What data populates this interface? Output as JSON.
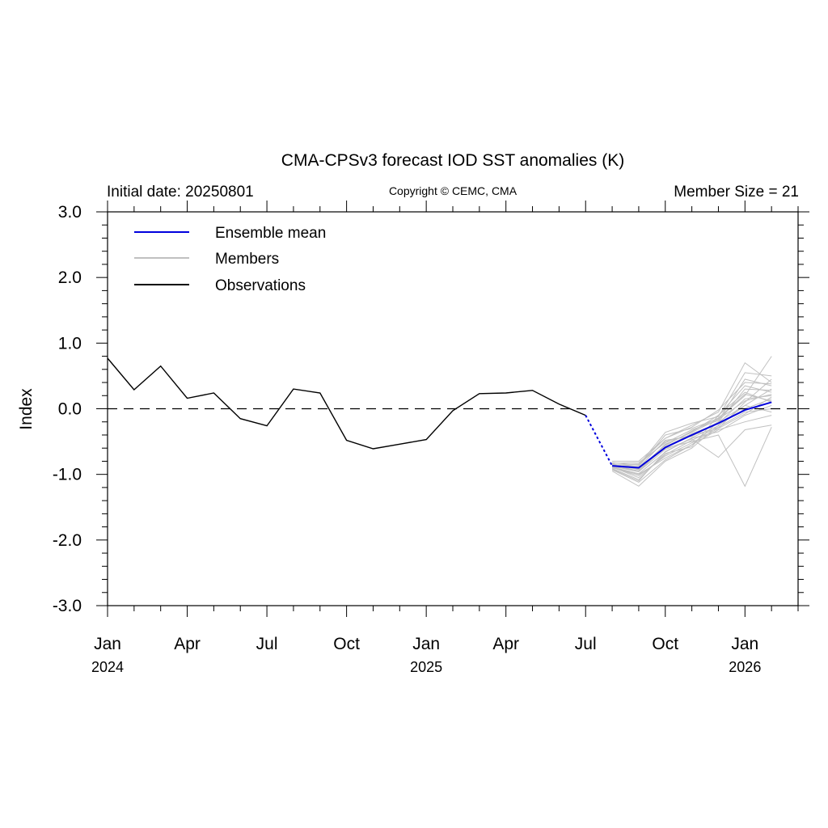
{
  "chart_data": {
    "type": "line",
    "title": "CMA-CPSv3 forecast IOD SST anomalies (K)",
    "initial_date_label": "Initial date: 20250801",
    "copyright_label": "Copyright © CEMC, CMA",
    "member_size_label": "Member Size = 21",
    "ylabel": "Index",
    "ylim": [
      -3.0,
      3.0
    ],
    "yticks": [
      3.0,
      2.0,
      1.0,
      0.0,
      -1.0,
      -2.0,
      -3.0
    ],
    "ytick_labels": [
      "3.0",
      "2.0",
      "1.0",
      "0.0",
      "-1.0",
      "-2.0",
      "-3.0"
    ],
    "xlim": [
      "2024-01",
      "2026-03"
    ],
    "xticks": [
      {
        "date": "2024-01",
        "label": "Jan",
        "year": "2024"
      },
      {
        "date": "2024-04",
        "label": "Apr",
        "year": ""
      },
      {
        "date": "2024-07",
        "label": "Jul",
        "year": ""
      },
      {
        "date": "2024-10",
        "label": "Oct",
        "year": ""
      },
      {
        "date": "2025-01",
        "label": "Jan",
        "year": "2025"
      },
      {
        "date": "2025-04",
        "label": "Apr",
        "year": ""
      },
      {
        "date": "2025-07",
        "label": "Jul",
        "year": ""
      },
      {
        "date": "2025-10",
        "label": "Oct",
        "year": ""
      },
      {
        "date": "2026-01",
        "label": "Jan",
        "year": "2026"
      }
    ],
    "zero_line": {
      "y": 0.0,
      "style": "dashed"
    },
    "legend": {
      "placement": "top-left",
      "entries": [
        {
          "label": "Ensemble mean",
          "color": "#0000dd"
        },
        {
          "label": "Members",
          "color": "#c0c0c0"
        },
        {
          "label": "Observations",
          "color": "#000000"
        }
      ]
    },
    "observations": {
      "color": "#000000",
      "points": [
        {
          "x": "2024-01",
          "y": 0.77
        },
        {
          "x": "2024-02",
          "y": 0.29
        },
        {
          "x": "2024-03",
          "y": 0.65
        },
        {
          "x": "2024-04",
          "y": 0.16
        },
        {
          "x": "2024-05",
          "y": 0.24
        },
        {
          "x": "2024-06",
          "y": -0.15
        },
        {
          "x": "2024-07",
          "y": -0.26
        },
        {
          "x": "2024-08",
          "y": 0.3
        },
        {
          "x": "2024-09",
          "y": 0.24
        },
        {
          "x": "2024-10",
          "y": -0.48
        },
        {
          "x": "2024-11",
          "y": -0.61
        },
        {
          "x": "2024-12",
          "y": -0.54
        },
        {
          "x": "2025-01",
          "y": -0.47
        },
        {
          "x": "2025-02",
          "y": -0.03
        },
        {
          "x": "2025-03",
          "y": 0.23
        },
        {
          "x": "2025-04",
          "y": 0.24
        },
        {
          "x": "2025-05",
          "y": 0.28
        },
        {
          "x": "2025-06",
          "y": 0.07
        },
        {
          "x": "2025-07",
          "y": -0.1
        }
      ]
    },
    "ensemble_mean": {
      "color": "#0000dd",
      "connector": [
        {
          "x": "2025-07",
          "y": -0.1
        },
        {
          "x": "2025-08",
          "y": -0.87
        }
      ],
      "points": [
        {
          "x": "2025-08",
          "y": -0.87
        },
        {
          "x": "2025-09",
          "y": -0.9
        },
        {
          "x": "2025-10",
          "y": -0.59
        },
        {
          "x": "2025-11",
          "y": -0.4
        },
        {
          "x": "2025-12",
          "y": -0.22
        },
        {
          "x": "2026-01",
          "y": -0.02
        },
        {
          "x": "2026-02",
          "y": 0.1
        }
      ]
    },
    "members": {
      "color": "#c0c0c0",
      "x": [
        "2025-08",
        "2025-09",
        "2025-10",
        "2025-11",
        "2025-12",
        "2026-01",
        "2026-02"
      ],
      "series": [
        {
          "values": [
            -0.85,
            -0.95,
            -0.55,
            -0.35,
            -0.1,
            0.35,
            0.25
          ]
        },
        {
          "values": [
            -0.88,
            -0.85,
            -0.5,
            -0.4,
            -0.3,
            0.1,
            0.45
          ]
        },
        {
          "values": [
            -0.9,
            -1.0,
            -0.75,
            -0.55,
            -0.2,
            0.05,
            0.3
          ]
        },
        {
          "values": [
            -0.8,
            -0.8,
            -0.45,
            -0.25,
            -0.05,
            0.7,
            0.4
          ]
        },
        {
          "values": [
            -0.92,
            -1.1,
            -0.65,
            -0.45,
            -0.35,
            -0.1,
            0.05
          ]
        },
        {
          "values": [
            -0.86,
            -0.88,
            -0.4,
            -0.3,
            -0.15,
            0.2,
            0.8
          ]
        },
        {
          "values": [
            -0.84,
            -0.92,
            -0.6,
            -0.5,
            -0.4,
            -1.18,
            -0.28
          ]
        },
        {
          "values": [
            -0.95,
            -1.18,
            -0.8,
            -0.6,
            -0.25,
            0.0,
            0.15
          ]
        },
        {
          "values": [
            -0.83,
            -0.82,
            -0.52,
            -0.32,
            -0.18,
            0.45,
            0.35
          ]
        },
        {
          "values": [
            -0.89,
            -1.05,
            -0.7,
            -0.48,
            -0.28,
            -0.05,
            0.0
          ]
        },
        {
          "values": [
            -0.87,
            -0.95,
            -0.58,
            -0.38,
            -0.22,
            0.15,
            0.2
          ]
        },
        {
          "values": [
            -0.91,
            -1.08,
            -0.68,
            -0.58,
            -0.1,
            0.25,
            0.1
          ]
        },
        {
          "values": [
            -0.82,
            -0.86,
            -0.36,
            -0.22,
            -0.12,
            0.55,
            0.5
          ]
        },
        {
          "values": [
            -0.93,
            -1.12,
            -0.78,
            -0.55,
            -0.32,
            -0.2,
            -0.1
          ]
        },
        {
          "values": [
            -0.85,
            -0.9,
            -0.48,
            -0.42,
            -0.2,
            0.3,
            0.28
          ]
        },
        {
          "values": [
            -0.88,
            -0.96,
            -0.62,
            -0.46,
            -0.74,
            -0.32,
            -0.25
          ]
        },
        {
          "values": [
            -0.86,
            -0.84,
            -0.45,
            -0.28,
            -0.02,
            0.4,
            0.38
          ]
        },
        {
          "values": [
            -0.9,
            -1.02,
            -0.72,
            -0.52,
            -0.3,
            -0.08,
            0.18
          ]
        },
        {
          "values": [
            -0.84,
            -0.93,
            -0.54,
            -0.36,
            -0.16,
            0.12,
            0.22
          ]
        },
        {
          "values": [
            -0.89,
            -0.99,
            -0.66,
            -0.44,
            -0.26,
            0.05,
            -0.05
          ]
        },
        {
          "values": [
            -0.87,
            -0.91,
            -0.56,
            -0.34,
            -0.14,
            0.22,
            0.12
          ]
        }
      ]
    }
  }
}
